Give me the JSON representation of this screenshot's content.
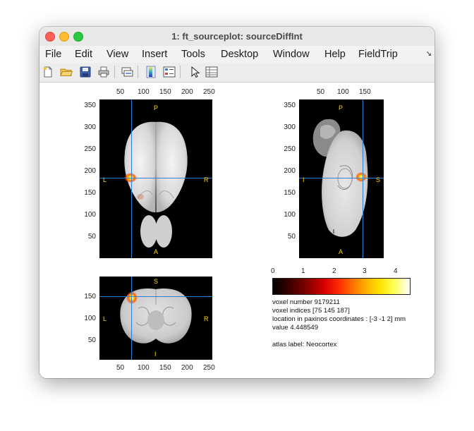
{
  "window": {
    "title": "1: ft_sourceplot: sourceDiffInt"
  },
  "menubar": {
    "items": [
      "File",
      "Edit",
      "View",
      "Insert",
      "Tools",
      "Desktop",
      "Window",
      "Help",
      "FieldTrip"
    ]
  },
  "toolbar": {
    "icons": [
      "new-figure-icon",
      "open-file-icon",
      "save-icon",
      "print-icon",
      "link-icon",
      "insert-colorbar-icon",
      "insert-legend-icon",
      "pointer-icon",
      "property-inspector-icon"
    ]
  },
  "axial": {
    "xticks": [
      "50",
      "100",
      "150",
      "200",
      "250"
    ],
    "yticks": [
      "350",
      "300",
      "250",
      "200",
      "150",
      "100",
      "50"
    ],
    "labels": {
      "top": "P",
      "bottom": "A",
      "left": "L",
      "right": "R"
    }
  },
  "sagittal": {
    "xticks": [
      "50",
      "100",
      "150"
    ],
    "yticks": [
      "350",
      "300",
      "250",
      "200",
      "150",
      "100",
      "50"
    ],
    "labels": {
      "top": "P",
      "bottom": "A",
      "left": "I",
      "right": "S"
    }
  },
  "coronal": {
    "xticks": [
      "50",
      "100",
      "150",
      "200",
      "250"
    ],
    "yticks": [
      "150",
      "100",
      "50"
    ],
    "labels": {
      "top": "S",
      "bottom": "I",
      "left": "L",
      "right": "R"
    }
  },
  "colorbar": {
    "ticks": [
      "0",
      "1",
      "2",
      "3",
      "4"
    ],
    "min": 0,
    "max": 4.45,
    "colormap": "hot"
  },
  "info": {
    "voxel_number": "voxel number 9179211",
    "voxel_indices": "voxel indices [75 145 187]",
    "location": "location in paxinos coordinates : [-3 -1 2] mm",
    "value": "value 4.448549",
    "atlas": "atlas label: Neocortex"
  },
  "colors": {
    "crosshair": "#2f7fd4",
    "orientation_label": "#ffd800",
    "panel_bg": "#000000"
  }
}
